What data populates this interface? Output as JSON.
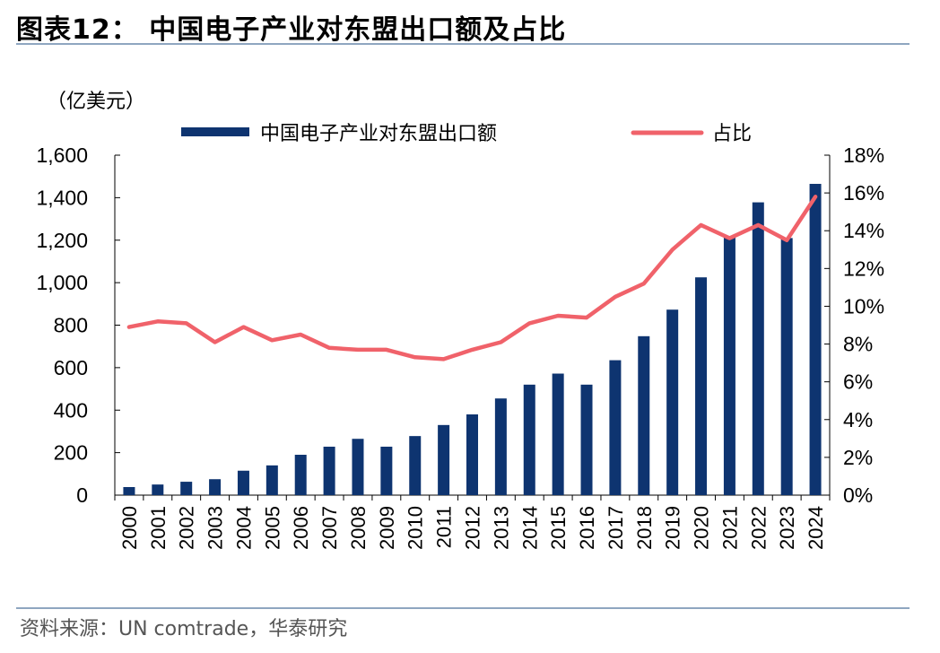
{
  "figure": {
    "title": "图表12：  中国电子产业对东盟出口额及占比",
    "source": "资料来源：UN comtrade，华泰研究"
  },
  "chart_data": {
    "type": "bar",
    "unit_label": "（亿美元）",
    "categories": [
      "2000",
      "2001",
      "2002",
      "2003",
      "2004",
      "2005",
      "2006",
      "2007",
      "2008",
      "2009",
      "2010",
      "2011",
      "2012",
      "2013",
      "2014",
      "2015",
      "2016",
      "2017",
      "2018",
      "2019",
      "2020",
      "2021",
      "2022",
      "2023",
      "2024"
    ],
    "series": [
      {
        "name": "中国电子产业对东盟出口额",
        "type": "bar",
        "axis": "left",
        "color": "#0e3470",
        "values": [
          38,
          50,
          63,
          75,
          115,
          140,
          190,
          228,
          265,
          228,
          278,
          330,
          380,
          455,
          520,
          572,
          520,
          635,
          748,
          873,
          1025,
          1220,
          1378,
          1210,
          1465
        ]
      },
      {
        "name": "占比",
        "type": "line",
        "axis": "right",
        "color": "#f0626a",
        "values": [
          8.9,
          9.2,
          9.1,
          8.1,
          8.9,
          8.2,
          8.5,
          7.8,
          7.7,
          7.7,
          7.3,
          7.2,
          7.7,
          8.1,
          9.1,
          9.5,
          9.4,
          10.5,
          11.2,
          13.0,
          14.3,
          13.6,
          14.3,
          13.5,
          15.8
        ]
      }
    ],
    "y_left": {
      "min": 0,
      "max": 1600,
      "ticks": [
        0,
        200,
        400,
        600,
        800,
        1000,
        1200,
        1400,
        1600
      ]
    },
    "y_right": {
      "min": 0,
      "max": 18,
      "ticks": [
        "0%",
        "2%",
        "4%",
        "6%",
        "8%",
        "10%",
        "12%",
        "14%",
        "16%",
        "18%"
      ]
    },
    "grid": false,
    "legend_position": "top"
  }
}
